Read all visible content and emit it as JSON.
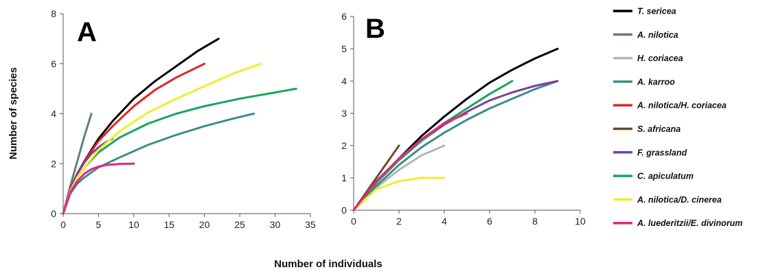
{
  "chart_data": [
    {
      "type": "line",
      "panel": "A",
      "xlim": [
        0,
        35
      ],
      "ylim": [
        0,
        8
      ],
      "xticks": [
        0,
        5,
        10,
        15,
        20,
        25,
        30,
        35
      ],
      "yticks": [
        0,
        2,
        4,
        6,
        8
      ],
      "series": [
        {
          "name": "T. sericea",
          "color": "#000000",
          "x": [
            0,
            1,
            2,
            3,
            5,
            7,
            10,
            13,
            16,
            19,
            22
          ],
          "y": [
            0,
            1.0,
            1.6,
            2.1,
            3.0,
            3.7,
            4.6,
            5.3,
            5.9,
            6.5,
            7.0
          ]
        },
        {
          "name": "A. nilotica",
          "color": "#5f7f80",
          "x": [
            0,
            1,
            2,
            3,
            4
          ],
          "y": [
            0,
            1.1,
            2.1,
            3.1,
            4.0
          ]
        },
        {
          "name": "A. karroo",
          "color": "#3c8c8c",
          "x": [
            0,
            1,
            2,
            3,
            5,
            8,
            12,
            16,
            20,
            24,
            27
          ],
          "y": [
            0,
            0.8,
            1.2,
            1.45,
            1.85,
            2.25,
            2.75,
            3.15,
            3.5,
            3.8,
            4.0
          ]
        },
        {
          "name": "A. nilotica/H. coriacea",
          "color": "#e32222",
          "x": [
            0,
            1,
            2,
            3,
            5,
            7,
            10,
            13,
            16,
            20
          ],
          "y": [
            0,
            1.0,
            1.6,
            2.1,
            2.9,
            3.5,
            4.3,
            4.95,
            5.45,
            6.0
          ]
        },
        {
          "name": "F. grassland",
          "color": "#7b3fa0",
          "x": [
            0,
            1,
            2,
            3,
            4,
            5,
            6,
            7
          ],
          "y": [
            0,
            1.0,
            1.6,
            2.05,
            2.4,
            2.65,
            2.85,
            3.0
          ]
        },
        {
          "name": "C. apiculatum",
          "color": "#1aa55a",
          "x": [
            0,
            1,
            2,
            3,
            5,
            8,
            12,
            16,
            20,
            25,
            30,
            33
          ],
          "y": [
            0,
            0.9,
            1.45,
            1.85,
            2.45,
            3.05,
            3.6,
            4.0,
            4.3,
            4.6,
            4.85,
            5.0
          ]
        },
        {
          "name": "A. nilotica/D. cinerea",
          "color": "#f2ee2a",
          "x": [
            0,
            1,
            2,
            3,
            5,
            8,
            12,
            16,
            20,
            24,
            28
          ],
          "y": [
            0,
            0.9,
            1.45,
            1.85,
            2.55,
            3.3,
            4.05,
            4.6,
            5.1,
            5.6,
            6.0
          ]
        },
        {
          "name": "A. luederitzii/E. divinorum",
          "color": "#e8237e",
          "x": [
            0,
            1,
            2,
            3,
            4,
            5,
            6,
            8,
            10
          ],
          "y": [
            0,
            0.85,
            1.3,
            1.6,
            1.78,
            1.88,
            1.94,
            1.99,
            2.0
          ]
        }
      ]
    },
    {
      "type": "line",
      "panel": "B",
      "xlim": [
        0,
        10
      ],
      "ylim": [
        0,
        6
      ],
      "xticks": [
        0,
        2,
        4,
        6,
        8,
        10
      ],
      "yticks": [
        0,
        1,
        2,
        3,
        4,
        5,
        6
      ],
      "series": [
        {
          "name": "T. sericea",
          "color": "#000000",
          "x": [
            0,
            1,
            2,
            3,
            4,
            5,
            6,
            7,
            8,
            9
          ],
          "y": [
            0,
            0.85,
            1.6,
            2.3,
            2.9,
            3.45,
            3.95,
            4.35,
            4.7,
            5.0
          ]
        },
        {
          "name": "H. coriacea",
          "color": "#b4b4b4",
          "x": [
            0,
            1,
            2,
            3,
            4
          ],
          "y": [
            0,
            0.7,
            1.25,
            1.7,
            2.0
          ]
        },
        {
          "name": "A. karroo",
          "color": "#3c8c8c",
          "x": [
            0,
            1,
            2,
            3,
            4,
            5,
            6,
            7,
            8,
            9
          ],
          "y": [
            0,
            0.75,
            1.4,
            1.95,
            2.4,
            2.8,
            3.15,
            3.45,
            3.75,
            4.0
          ]
        },
        {
          "name": "S. africana",
          "color": "#6b4a2a",
          "x": [
            0,
            1,
            2
          ],
          "y": [
            0,
            1.0,
            2.0
          ]
        },
        {
          "name": "F. grassland",
          "color": "#7b3fa0",
          "x": [
            0,
            1,
            2,
            3,
            4,
            5,
            6,
            7,
            8,
            9
          ],
          "y": [
            0,
            0.85,
            1.55,
            2.15,
            2.65,
            3.05,
            3.4,
            3.65,
            3.85,
            4.0
          ]
        },
        {
          "name": "C. apiculatum",
          "color": "#1aa55a",
          "x": [
            0,
            1,
            2,
            3,
            4,
            5,
            6,
            7
          ],
          "y": [
            0,
            0.85,
            1.55,
            2.15,
            2.7,
            3.15,
            3.6,
            4.0
          ]
        },
        {
          "name": "A. nilotica/D. cinerea",
          "color": "#f2ee2a",
          "x": [
            0,
            1,
            2,
            3,
            4
          ],
          "y": [
            0,
            0.65,
            0.9,
            1.0,
            1.0
          ]
        },
        {
          "name": "A. luederitzii/E. divinorum",
          "color": "#e8237e",
          "x": [
            0,
            1,
            2,
            3,
            4,
            5
          ],
          "y": [
            0,
            0.9,
            1.6,
            2.2,
            2.7,
            3.0
          ]
        }
      ]
    }
  ],
  "panels": [
    {
      "letter": "A"
    },
    {
      "letter": "B"
    }
  ],
  "axes": {
    "ylabel": "Number of species",
    "xlabel": "Number of individuals"
  },
  "legend": [
    {
      "name": "T. sericea",
      "color": "#000000"
    },
    {
      "name": "A. nilotica",
      "color": "#5f7f80"
    },
    {
      "name": "H. coriacea",
      "color": "#b4b4b4"
    },
    {
      "name": "A. karroo",
      "color": "#3c8c8c"
    },
    {
      "name": "A. nilotica/H. coriacea",
      "color": "#e32222"
    },
    {
      "name": "S. africana",
      "color": "#6b4a2a"
    },
    {
      "name": "F. grassland",
      "color": "#7b3fa0"
    },
    {
      "name": "C. apiculatum",
      "color": "#1aa55a"
    },
    {
      "name": "A. nilotica/D. cinerea",
      "color": "#f2ee2a"
    },
    {
      "name": "A. luederitzii/E. divinorum",
      "color": "#e8237e"
    }
  ]
}
